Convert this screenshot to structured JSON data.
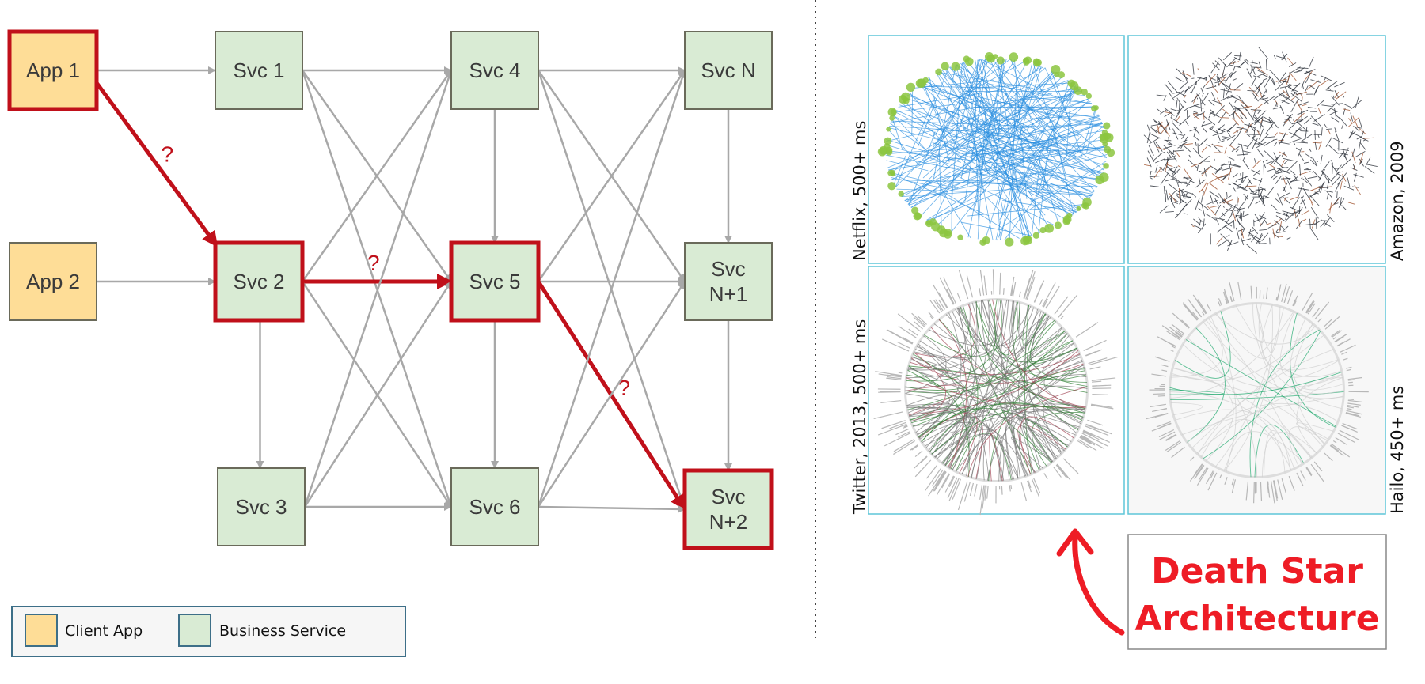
{
  "colors": {
    "client_fill": "#fedd97",
    "service_fill": "#d9ebd4",
    "highlight": "#c0101a",
    "edge": "#a8a8a8",
    "panel_border": "#5ec6d8",
    "death_star": "#ee1c25"
  },
  "nodes": [
    {
      "id": "app1",
      "label": "App 1",
      "type": "client",
      "highlighted": true
    },
    {
      "id": "app2",
      "label": "App 2",
      "type": "client",
      "highlighted": false
    },
    {
      "id": "svc1",
      "label": "Svc 1",
      "type": "service",
      "highlighted": false
    },
    {
      "id": "svc2",
      "label": "Svc 2",
      "type": "service",
      "highlighted": true
    },
    {
      "id": "svc3",
      "label": "Svc 3",
      "type": "service",
      "highlighted": false
    },
    {
      "id": "svc4",
      "label": "Svc 4",
      "type": "service",
      "highlighted": false
    },
    {
      "id": "svc5",
      "label": "Svc 5",
      "type": "service",
      "highlighted": true
    },
    {
      "id": "svc6",
      "label": "Svc 6",
      "type": "service",
      "highlighted": false
    },
    {
      "id": "svcn",
      "label": "Svc N",
      "type": "service",
      "highlighted": false
    },
    {
      "id": "svcn1",
      "label": "Svc\nN+1",
      "type": "service",
      "highlighted": false
    },
    {
      "id": "svcn2",
      "label": "Svc\nN+2",
      "type": "service",
      "highlighted": true
    }
  ],
  "edges": [
    {
      "from": "app1",
      "to": "svc1"
    },
    {
      "from": "app1",
      "to": "svc2",
      "highlighted": true,
      "label": "?"
    },
    {
      "from": "app2",
      "to": "svc2"
    },
    {
      "from": "svc1",
      "to": "svc4"
    },
    {
      "from": "svc1",
      "to": "svc5"
    },
    {
      "from": "svc1",
      "to": "svc6"
    },
    {
      "from": "svc2",
      "to": "svc4"
    },
    {
      "from": "svc2",
      "to": "svc5",
      "highlighted": true,
      "label": "?"
    },
    {
      "from": "svc2",
      "to": "svc6"
    },
    {
      "from": "svc2",
      "to": "svc3"
    },
    {
      "from": "svc3",
      "to": "svc4"
    },
    {
      "from": "svc3",
      "to": "svc5"
    },
    {
      "from": "svc3",
      "to": "svc6"
    },
    {
      "from": "svc4",
      "to": "svc5"
    },
    {
      "from": "svc5",
      "to": "svc6"
    },
    {
      "from": "svc4",
      "to": "svcn"
    },
    {
      "from": "svc4",
      "to": "svcn1"
    },
    {
      "from": "svc4",
      "to": "svcn2"
    },
    {
      "from": "svc5",
      "to": "svcn"
    },
    {
      "from": "svc5",
      "to": "svcn1"
    },
    {
      "from": "svc5",
      "to": "svcn2",
      "highlighted": true,
      "label": "?"
    },
    {
      "from": "svc6",
      "to": "svcn"
    },
    {
      "from": "svc6",
      "to": "svcn1"
    },
    {
      "from": "svc6",
      "to": "svcn2"
    },
    {
      "from": "svcn",
      "to": "svcn1"
    },
    {
      "from": "svcn1",
      "to": "svcn2"
    }
  ],
  "legend": {
    "client": "Client App",
    "service": "Business Service"
  },
  "panels": [
    {
      "label": "Netflix, 500+ ms",
      "style": "netflix"
    },
    {
      "label": "Amazon, 2009",
      "style": "amazon"
    },
    {
      "label": "Twitter, 2013, 500+ ms",
      "style": "twitter"
    },
    {
      "label": "Hailo, 450+ ms",
      "style": "hailo"
    }
  ],
  "callout": {
    "line1": "Death Star",
    "line2": "Architecture"
  }
}
